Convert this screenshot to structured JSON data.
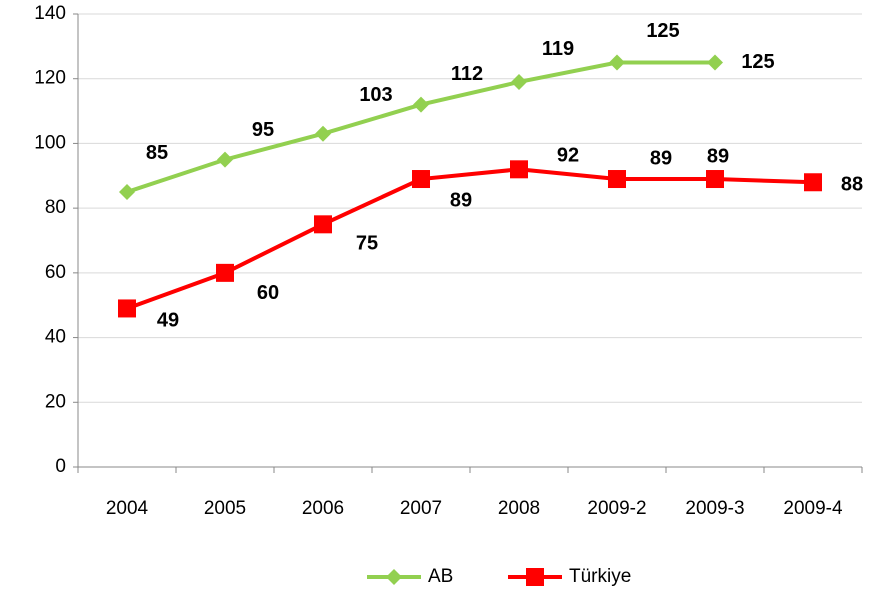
{
  "chart_data": {
    "type": "line",
    "categories": [
      "2004",
      "2005",
      "2006",
      "2007",
      "2008",
      "2009-2",
      "2009-3",
      "2009-4"
    ],
    "series": [
      {
        "name": "AB",
        "color": "#92d050",
        "marker": "diamond",
        "values": [
          85,
          95,
          103,
          112,
          119,
          125,
          125,
          null
        ]
      },
      {
        "name": "Türkiye",
        "color": "#ff0000",
        "marker": "square",
        "values": [
          49,
          60,
          75,
          89,
          92,
          89,
          89,
          88
        ]
      }
    ],
    "ylim": [
      0,
      140
    ],
    "yticks": [
      0,
      20,
      40,
      60,
      80,
      100,
      120,
      140
    ],
    "grid": true,
    "legend": "bottom"
  }
}
